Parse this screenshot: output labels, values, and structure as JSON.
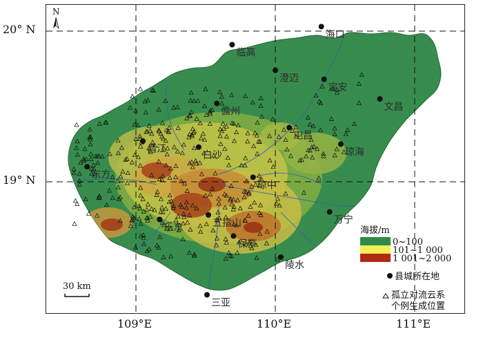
{
  "axes": {
    "lat_labels": [
      {
        "text": "20° N",
        "lat": 20.0
      },
      {
        "text": "19° N",
        "lat": 19.0
      }
    ],
    "lon_labels": [
      {
        "text": "109°E",
        "lon": 109.0
      },
      {
        "text": "110°E",
        "lon": 110.0
      },
      {
        "text": "111°E",
        "lon": 111.0
      }
    ]
  },
  "north_arrow": "N",
  "scale_bar": "30 km",
  "cities": [
    {
      "name": "临高",
      "lon": 109.69,
      "lat": 19.91
    },
    {
      "name": "海口",
      "lon": 110.33,
      "lat": 20.03
    },
    {
      "name": "文昌",
      "lon": 110.75,
      "lat": 19.55
    },
    {
      "name": "澄迈",
      "lon": 110.0,
      "lat": 19.74
    },
    {
      "name": "儋州",
      "lon": 109.58,
      "lat": 19.52
    },
    {
      "name": "定安",
      "lon": 110.35,
      "lat": 19.68
    },
    {
      "name": "屯昌",
      "lon": 110.1,
      "lat": 19.36
    },
    {
      "name": "琼海",
      "lon": 110.47,
      "lat": 19.25
    },
    {
      "name": "昌江",
      "lon": 109.05,
      "lat": 19.27
    },
    {
      "name": "白沙",
      "lon": 109.45,
      "lat": 19.23
    },
    {
      "name": "东方",
      "lon": 108.65,
      "lat": 19.1
    },
    {
      "name": "琼中",
      "lon": 109.84,
      "lat": 19.03
    },
    {
      "name": "万宁",
      "lon": 110.39,
      "lat": 18.8
    },
    {
      "name": "五指山",
      "lon": 109.52,
      "lat": 18.78
    },
    {
      "name": "乐东",
      "lon": 109.17,
      "lat": 18.75
    },
    {
      "name": "保亭",
      "lon": 109.7,
      "lat": 18.64
    },
    {
      "name": "陵水",
      "lon": 110.04,
      "lat": 18.5
    },
    {
      "name": "三亚",
      "lon": 109.51,
      "lat": 18.25
    }
  ],
  "legend": {
    "title": "海拔/m",
    "bands": [
      {
        "label": "0~100",
        "color": "#2e8b4a"
      },
      {
        "label": "101~1 000",
        "color": "#f2ee58"
      },
      {
        "label": "1 001~2 000",
        "color": "#b02a12"
      }
    ],
    "county_seat": "县城所在地",
    "convection_line1": "孤立对流云系",
    "convection_line2": "个例生成位置"
  }
}
